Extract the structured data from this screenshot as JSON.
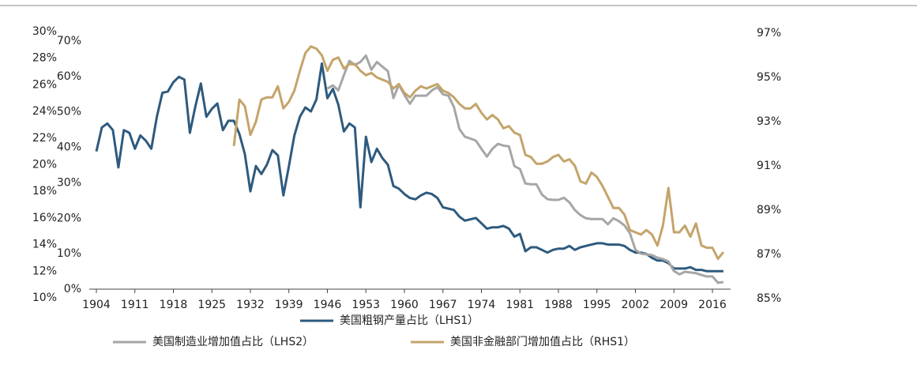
{
  "chart_data": {
    "type": "line",
    "x": [
      1904,
      1905,
      1906,
      1907,
      1908,
      1909,
      1910,
      1911,
      1912,
      1913,
      1914,
      1915,
      1916,
      1917,
      1918,
      1919,
      1920,
      1921,
      1922,
      1923,
      1924,
      1925,
      1926,
      1927,
      1928,
      1929,
      1930,
      1931,
      1932,
      1933,
      1934,
      1935,
      1936,
      1937,
      1938,
      1939,
      1940,
      1941,
      1942,
      1943,
      1944,
      1945,
      1946,
      1947,
      1948,
      1949,
      1950,
      1951,
      1952,
      1953,
      1954,
      1955,
      1956,
      1957,
      1958,
      1959,
      1960,
      1961,
      1962,
      1963,
      1964,
      1965,
      1966,
      1967,
      1968,
      1969,
      1970,
      1971,
      1972,
      1973,
      1974,
      1975,
      1976,
      1977,
      1978,
      1979,
      1980,
      1981,
      1982,
      1983,
      1984,
      1985,
      1986,
      1987,
      1988,
      1989,
      1990,
      1991,
      1992,
      1993,
      1994,
      1995,
      1996,
      1997,
      1998,
      1999,
      2000,
      2001,
      2002,
      2003,
      2004,
      2005,
      2006,
      2007,
      2008,
      2009,
      2010,
      2011,
      2012,
      2013,
      2014,
      2015,
      2016,
      2017,
      2018
    ],
    "xlim": [
      1904,
      2016
    ],
    "xticks": [
      1904,
      1911,
      1918,
      1925,
      1932,
      1939,
      1946,
      1953,
      1960,
      1967,
      1974,
      1981,
      1988,
      1995,
      2002,
      2009,
      2016
    ],
    "ylim": [
      10,
      30
    ],
    "yticks": [
      {
        "value": 10,
        "label": "10%"
      },
      {
        "value": 12,
        "label": "12%"
      },
      {
        "value": 14,
        "label": "14%"
      },
      {
        "value": 16,
        "label": "16%"
      },
      {
        "value": 18,
        "label": "18%"
      },
      {
        "value": 20,
        "label": "20%"
      },
      {
        "value": 22,
        "label": "22%"
      },
      {
        "value": 24,
        "label": "24%"
      },
      {
        "value": 26,
        "label": "26%"
      },
      {
        "value": 28,
        "label": "28%"
      },
      {
        "value": 30,
        "label": "30%"
      }
    ],
    "y3lim": [
      0,
      70
    ],
    "y3ticks": [
      {
        "value": 0,
        "label": "0%"
      },
      {
        "value": 10,
        "label": "10%"
      },
      {
        "value": 20,
        "label": "20%"
      },
      {
        "value": 30,
        "label": "30%"
      },
      {
        "value": 40,
        "label": "40%"
      },
      {
        "value": 50,
        "label": "50%"
      },
      {
        "value": 60,
        "label": "60%"
      },
      {
        "value": 70,
        "label": "70%"
      }
    ],
    "y2lim": [
      85,
      97
    ],
    "y2ticks": [
      {
        "value": 85,
        "label": "85%"
      },
      {
        "value": 87,
        "label": "87%"
      },
      {
        "value": 89,
        "label": "89%"
      },
      {
        "value": 91,
        "label": "91%"
      },
      {
        "value": 93,
        "label": "93%"
      },
      {
        "value": 95,
        "label": "95%"
      },
      {
        "value": 97,
        "label": "97%"
      }
    ],
    "series": [
      {
        "name": "美国粗钢产量占比（LHS1）",
        "color": "#2e5a7e",
        "axis": "y",
        "values": [
          21.0,
          22.8,
          23.1,
          22.6,
          19.8,
          22.6,
          22.4,
          21.2,
          22.2,
          21.8,
          21.2,
          23.6,
          25.4,
          25.5,
          26.2,
          26.6,
          26.4,
          22.4,
          24.4,
          26.1,
          23.6,
          24.2,
          24.6,
          22.6,
          23.3,
          23.3,
          22.3,
          20.8,
          18.0,
          19.9,
          19.3,
          20.0,
          21.1,
          20.7,
          17.7,
          19.9,
          22.2,
          23.6,
          24.3,
          24.0,
          24.9,
          27.6,
          25.0,
          25.7,
          24.5,
          22.5,
          23.1,
          22.8,
          16.8,
          22.1,
          20.2,
          21.2,
          20.5,
          20.0,
          18.4,
          18.2,
          17.8,
          17.5,
          17.4,
          17.7,
          17.9,
          17.8,
          17.5,
          16.8,
          16.7,
          16.6,
          16.1,
          15.8,
          15.9,
          16.0,
          15.6,
          15.2,
          15.3,
          15.3,
          15.4,
          15.2,
          14.6,
          14.8,
          13.5,
          13.8,
          13.8,
          13.6,
          13.4,
          13.6,
          13.7,
          13.7,
          13.9,
          13.6,
          13.8,
          13.9,
          14.0,
          14.1,
          14.1,
          14.0,
          14.0,
          14.0,
          13.9,
          13.6,
          13.4,
          13.4,
          13.3,
          13.0,
          12.8,
          12.8,
          12.6,
          12.2,
          12.2,
          12.2,
          12.3,
          12.1,
          12.1,
          12.0,
          12.0,
          12.0,
          12.0
        ]
      },
      {
        "name": "美国制造业增加值占比（LHS2）",
        "color": "#a6a6a6",
        "axis": "y3",
        "values": [
          null,
          null,
          null,
          null,
          null,
          null,
          null,
          null,
          null,
          null,
          null,
          null,
          null,
          null,
          null,
          null,
          null,
          null,
          null,
          null,
          null,
          null,
          null,
          null,
          null,
          null,
          null,
          null,
          null,
          null,
          null,
          null,
          null,
          null,
          null,
          null,
          null,
          null,
          null,
          null,
          null,
          null,
          56.6,
          57.5,
          56.1,
          60.4,
          64.4,
          63.3,
          64.1,
          65.9,
          61.9,
          64.1,
          62.8,
          61.5,
          53.9,
          57.7,
          54.8,
          52.3,
          54.6,
          54.6,
          54.6,
          56.1,
          57.0,
          55.0,
          54.6,
          51.4,
          45.2,
          43.0,
          42.5,
          41.9,
          39.6,
          37.4,
          39.6,
          41.0,
          40.5,
          40.3,
          34.7,
          33.9,
          29.8,
          29.6,
          29.6,
          26.7,
          25.4,
          25.2,
          25.2,
          25.8,
          24.5,
          22.3,
          20.9,
          20.0,
          19.8,
          19.8,
          19.8,
          18.3,
          20.0,
          19.2,
          18.0,
          15.8,
          11.1,
          10.0,
          9.8,
          9.6,
          8.9,
          8.5,
          7.8,
          5.1,
          4.2,
          4.9,
          4.7,
          4.5,
          4.0,
          3.6,
          3.6,
          1.8,
          2.0
        ]
      },
      {
        "name": "美国非金融部门增加值占比（RHS1）",
        "color": "#c4a46b",
        "axis": "y2",
        "values": [
          null,
          null,
          null,
          null,
          null,
          null,
          null,
          null,
          null,
          null,
          null,
          null,
          null,
          null,
          null,
          null,
          null,
          null,
          null,
          null,
          null,
          null,
          null,
          null,
          null,
          91.9,
          94.0,
          93.7,
          92.4,
          93.0,
          94.0,
          94.1,
          94.1,
          94.6,
          93.6,
          93.9,
          94.4,
          95.3,
          96.1,
          96.4,
          96.3,
          96.0,
          95.3,
          95.8,
          95.9,
          95.4,
          95.6,
          95.6,
          95.3,
          95.1,
          95.2,
          95.0,
          94.9,
          94.8,
          94.5,
          94.7,
          94.3,
          94.1,
          94.4,
          94.6,
          94.5,
          94.6,
          94.7,
          94.4,
          94.3,
          94.1,
          93.8,
          93.6,
          93.6,
          93.8,
          93.4,
          93.1,
          93.3,
          93.1,
          92.7,
          92.8,
          92.5,
          92.4,
          91.5,
          91.4,
          91.1,
          91.1,
          91.2,
          91.4,
          91.5,
          91.2,
          91.3,
          91.0,
          90.3,
          90.2,
          90.7,
          90.5,
          90.1,
          89.6,
          89.1,
          89.1,
          88.8,
          88.1,
          88.0,
          87.9,
          88.1,
          87.9,
          87.4,
          88.3,
          90.0,
          88.0,
          88.0,
          88.3,
          87.8,
          88.4,
          87.4,
          87.3,
          87.3,
          86.8,
          87.1
        ]
      }
    ]
  }
}
